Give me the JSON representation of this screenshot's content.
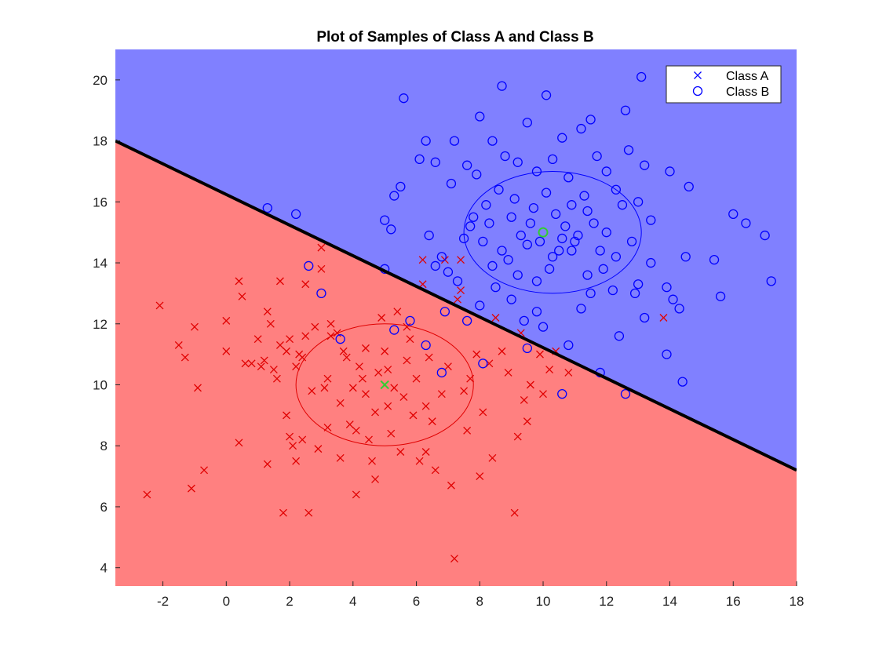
{
  "chart_data": {
    "type": "scatter",
    "title": "Plot of Samples of Class A and Class B",
    "xlabel": "",
    "ylabel": "",
    "xlim": [
      -3.5,
      18
    ],
    "ylim": [
      3.4,
      21
    ],
    "x_ticks": [
      -2,
      0,
      2,
      4,
      6,
      8,
      10,
      12,
      14,
      16,
      18
    ],
    "y_ticks": [
      4,
      6,
      8,
      10,
      12,
      14,
      16,
      18,
      20
    ],
    "grid": false,
    "legend_position": "top-right",
    "regions": {
      "above_boundary_color": "#8080ff",
      "below_boundary_color": "#ff8080"
    },
    "decision_boundary": {
      "color": "#000000",
      "points": [
        [
          -3.5,
          18.0
        ],
        [
          18.0,
          7.2
        ]
      ]
    },
    "series": [
      {
        "name": "Class A",
        "marker": "x",
        "color": "#e00000",
        "legend_color": "#0000ff",
        "mean": [
          5,
          10
        ],
        "mean_color": "#33cc33",
        "contour": {
          "center": [
            5,
            10
          ],
          "rx": 2.8,
          "ry": 2.0,
          "color": "#e00000"
        },
        "points": [
          [
            -2.5,
            6.4
          ],
          [
            -2.1,
            12.6
          ],
          [
            -1.5,
            11.3
          ],
          [
            -1.3,
            10.9
          ],
          [
            -1.0,
            11.9
          ],
          [
            -1.1,
            6.6
          ],
          [
            -0.9,
            9.9
          ],
          [
            -0.7,
            7.2
          ],
          [
            0.0,
            12.1
          ],
          [
            0.0,
            11.1
          ],
          [
            0.4,
            8.1
          ],
          [
            0.4,
            13.4
          ],
          [
            0.5,
            12.9
          ],
          [
            0.8,
            10.7
          ],
          [
            1.0,
            11.5
          ],
          [
            1.1,
            10.6
          ],
          [
            1.2,
            10.8
          ],
          [
            1.3,
            12.4
          ],
          [
            1.4,
            12.0
          ],
          [
            1.3,
            7.4
          ],
          [
            1.5,
            10.5
          ],
          [
            1.7,
            11.3
          ],
          [
            1.8,
            5.8
          ],
          [
            1.9,
            11.1
          ],
          [
            2.0,
            11.5
          ],
          [
            1.9,
            9.0
          ],
          [
            2.0,
            8.3
          ],
          [
            2.1,
            8.0
          ],
          [
            2.2,
            10.6
          ],
          [
            2.3,
            11.0
          ],
          [
            2.4,
            10.9
          ],
          [
            2.4,
            8.2
          ],
          [
            2.5,
            11.6
          ],
          [
            2.6,
            5.8
          ],
          [
            2.7,
            9.8
          ],
          [
            2.9,
            7.9
          ],
          [
            3.0,
            13.8
          ],
          [
            3.0,
            14.5
          ],
          [
            3.1,
            9.9
          ],
          [
            3.2,
            10.2
          ],
          [
            3.3,
            12.0
          ],
          [
            3.5,
            11.7
          ],
          [
            3.6,
            9.4
          ],
          [
            3.6,
            7.6
          ],
          [
            3.7,
            11.1
          ],
          [
            3.8,
            10.9
          ],
          [
            3.9,
            8.7
          ],
          [
            4.0,
            9.9
          ],
          [
            4.1,
            6.4
          ],
          [
            4.2,
            10.6
          ],
          [
            4.3,
            10.2
          ],
          [
            4.4,
            9.7
          ],
          [
            4.5,
            8.2
          ],
          [
            4.6,
            7.5
          ],
          [
            4.7,
            6.9
          ],
          [
            4.8,
            10.4
          ],
          [
            4.9,
            12.2
          ],
          [
            5.0,
            11.1
          ],
          [
            5.1,
            10.5
          ],
          [
            5.2,
            8.4
          ],
          [
            5.3,
            9.9
          ],
          [
            5.4,
            12.4
          ],
          [
            5.5,
            7.8
          ],
          [
            5.6,
            9.6
          ],
          [
            5.7,
            10.8
          ],
          [
            5.8,
            11.5
          ],
          [
            5.9,
            9.0
          ],
          [
            6.0,
            10.2
          ],
          [
            6.1,
            7.5
          ],
          [
            6.2,
            13.3
          ],
          [
            6.3,
            9.3
          ],
          [
            6.4,
            10.9
          ],
          [
            6.5,
            8.8
          ],
          [
            6.6,
            7.2
          ],
          [
            6.8,
            9.7
          ],
          [
            6.9,
            14.1
          ],
          [
            7.0,
            10.6
          ],
          [
            7.1,
            6.7
          ],
          [
            7.2,
            4.3
          ],
          [
            7.3,
            12.8
          ],
          [
            7.4,
            14.1
          ],
          [
            7.5,
            9.8
          ],
          [
            7.6,
            8.5
          ],
          [
            7.7,
            10.2
          ],
          [
            7.9,
            11.0
          ],
          [
            8.0,
            7.0
          ],
          [
            8.1,
            9.1
          ],
          [
            8.3,
            10.7
          ],
          [
            8.4,
            7.6
          ],
          [
            8.5,
            12.2
          ],
          [
            8.7,
            11.1
          ],
          [
            8.9,
            10.4
          ],
          [
            9.1,
            5.8
          ],
          [
            9.2,
            8.3
          ],
          [
            9.3,
            11.7
          ],
          [
            9.4,
            9.5
          ],
          [
            9.5,
            8.8
          ],
          [
            9.6,
            10.0
          ],
          [
            9.9,
            11.0
          ],
          [
            10.0,
            9.7
          ],
          [
            10.2,
            10.5
          ],
          [
            10.4,
            11.1
          ],
          [
            10.8,
            10.4
          ],
          [
            13.8,
            12.2
          ],
          [
            6.2,
            14.1
          ],
          [
            7.4,
            13.1
          ],
          [
            3.3,
            11.6
          ],
          [
            4.4,
            11.2
          ],
          [
            5.7,
            11.9
          ],
          [
            2.8,
            11.9
          ],
          [
            1.6,
            10.2
          ],
          [
            0.6,
            10.7
          ],
          [
            3.2,
            8.6
          ],
          [
            4.1,
            8.5
          ],
          [
            6.3,
            7.8
          ],
          [
            5.1,
            9.3
          ],
          [
            4.7,
            9.1
          ],
          [
            2.2,
            7.5
          ],
          [
            1.7,
            13.4
          ],
          [
            2.5,
            13.3
          ]
        ]
      },
      {
        "name": "Class B",
        "marker": "o",
        "color": "#0000ff",
        "legend_color": "#0000ff",
        "mean": [
          10,
          15
        ],
        "mean_color": "#33cc33",
        "contour": {
          "center": [
            10.3,
            15.0
          ],
          "rx": 2.8,
          "ry": 2.0,
          "color": "#0000ff"
        },
        "points": [
          [
            1.3,
            15.8
          ],
          [
            2.2,
            15.6
          ],
          [
            2.6,
            13.9
          ],
          [
            3.0,
            13.0
          ],
          [
            3.6,
            11.5
          ],
          [
            5.0,
            13.8
          ],
          [
            5.3,
            11.8
          ],
          [
            5.8,
            12.1
          ],
          [
            6.3,
            11.3
          ],
          [
            6.8,
            10.4
          ],
          [
            8.1,
            10.7
          ],
          [
            9.5,
            11.2
          ],
          [
            10.6,
            9.7
          ],
          [
            11.8,
            10.4
          ],
          [
            12.6,
            9.7
          ],
          [
            14.4,
            10.1
          ],
          [
            13.9,
            11.0
          ],
          [
            12.4,
            11.6
          ],
          [
            13.2,
            12.2
          ],
          [
            14.3,
            12.5
          ],
          [
            14.1,
            12.8
          ],
          [
            13.0,
            13.3
          ],
          [
            13.4,
            14.0
          ],
          [
            14.5,
            14.2
          ],
          [
            15.4,
            14.1
          ],
          [
            15.6,
            12.9
          ],
          [
            16.0,
            15.6
          ],
          [
            16.4,
            15.3
          ],
          [
            17.0,
            14.9
          ],
          [
            17.2,
            13.4
          ],
          [
            14.6,
            16.5
          ],
          [
            14.0,
            17.0
          ],
          [
            13.2,
            17.2
          ],
          [
            12.6,
            19.0
          ],
          [
            13.1,
            20.1
          ],
          [
            10.1,
            19.5
          ],
          [
            8.7,
            19.8
          ],
          [
            8.0,
            18.8
          ],
          [
            5.6,
            19.4
          ],
          [
            6.1,
            17.4
          ],
          [
            6.3,
            18.0
          ],
          [
            6.6,
            17.3
          ],
          [
            5.5,
            16.5
          ],
          [
            5.3,
            16.2
          ],
          [
            5.0,
            15.4
          ],
          [
            5.2,
            15.1
          ],
          [
            6.4,
            14.9
          ],
          [
            7.1,
            16.6
          ],
          [
            7.2,
            18.0
          ],
          [
            7.6,
            17.2
          ],
          [
            7.9,
            16.9
          ],
          [
            8.4,
            18.0
          ],
          [
            8.8,
            17.5
          ],
          [
            9.2,
            17.3
          ],
          [
            9.5,
            18.6
          ],
          [
            9.8,
            17.0
          ],
          [
            10.1,
            16.3
          ],
          [
            10.3,
            17.4
          ],
          [
            10.6,
            18.1
          ],
          [
            10.8,
            16.8
          ],
          [
            11.2,
            18.4
          ],
          [
            11.5,
            18.7
          ],
          [
            11.7,
            17.5
          ],
          [
            12.0,
            17.0
          ],
          [
            12.3,
            16.4
          ],
          [
            12.7,
            17.7
          ],
          [
            13.0,
            16.0
          ],
          [
            13.4,
            15.4
          ],
          [
            12.8,
            14.7
          ],
          [
            12.3,
            14.2
          ],
          [
            11.9,
            13.8
          ],
          [
            11.4,
            13.6
          ],
          [
            11.0,
            14.7
          ],
          [
            10.7,
            15.2
          ],
          [
            10.5,
            14.4
          ],
          [
            10.2,
            13.8
          ],
          [
            9.9,
            14.7
          ],
          [
            9.6,
            15.3
          ],
          [
            9.3,
            14.9
          ],
          [
            9.0,
            15.5
          ],
          [
            8.7,
            14.4
          ],
          [
            8.4,
            13.9
          ],
          [
            8.1,
            14.7
          ],
          [
            7.8,
            15.5
          ],
          [
            7.5,
            14.8
          ],
          [
            7.3,
            13.4
          ],
          [
            7.0,
            13.7
          ],
          [
            6.8,
            14.2
          ],
          [
            6.6,
            13.9
          ],
          [
            8.0,
            12.6
          ],
          [
            8.5,
            13.2
          ],
          [
            9.0,
            12.8
          ],
          [
            9.4,
            12.1
          ],
          [
            9.8,
            12.4
          ],
          [
            10.0,
            11.9
          ],
          [
            10.8,
            11.3
          ],
          [
            11.2,
            12.5
          ],
          [
            11.5,
            13.0
          ],
          [
            10.0,
            15.0
          ],
          [
            10.4,
            15.6
          ],
          [
            10.9,
            15.9
          ],
          [
            11.3,
            16.2
          ],
          [
            11.6,
            15.3
          ],
          [
            12.0,
            15.0
          ],
          [
            9.1,
            16.1
          ],
          [
            8.6,
            16.4
          ],
          [
            8.2,
            15.9
          ],
          [
            9.7,
            15.8
          ],
          [
            10.6,
            14.8
          ],
          [
            11.1,
            14.9
          ],
          [
            9.2,
            13.6
          ],
          [
            8.9,
            14.1
          ],
          [
            7.6,
            12.1
          ],
          [
            6.9,
            12.4
          ],
          [
            7.7,
            15.2
          ],
          [
            11.8,
            14.4
          ],
          [
            12.2,
            13.1
          ],
          [
            12.9,
            13.0
          ],
          [
            12.5,
            15.9
          ],
          [
            13.9,
            13.2
          ],
          [
            9.5,
            14.6
          ],
          [
            10.3,
            14.2
          ],
          [
            10.9,
            14.4
          ],
          [
            9.8,
            13.4
          ],
          [
            8.3,
            15.3
          ],
          [
            11.4,
            15.7
          ]
        ]
      }
    ]
  }
}
